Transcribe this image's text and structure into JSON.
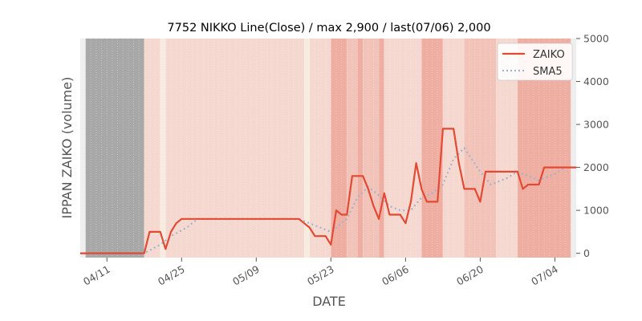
{
  "chart_data": {
    "type": "line",
    "title": "7752 NIKKO Line(Close) / max 2,900 / last(07/06) 2,000",
    "xlabel": "DATE",
    "ylabel": "IPPAN ZAIKO (volume)",
    "y_axis_side": "right",
    "ylim": [
      -100,
      5000
    ],
    "y_ticks": [
      0,
      1000,
      2000,
      3000,
      4000,
      5000
    ],
    "y_tick_labels": [
      "0",
      "1000",
      "2000",
      "3000",
      "4000",
      "5000"
    ],
    "x_range": [
      "2022-04-06",
      "2022-07-08"
    ],
    "x_ticks": [
      "2022-04-11",
      "2022-04-25",
      "2022-05-09",
      "2022-05-23",
      "2022-06-06",
      "2022-06-20",
      "2022-07-04"
    ],
    "x_tick_labels": [
      "04/11",
      "04/25",
      "05/09",
      "05/23",
      "06/06",
      "06/20",
      "07/04"
    ],
    "grid": false,
    "legend": "top-right",
    "colors": {
      "zaiko": "#e24a33",
      "sma5": "#a3b4cc",
      "missing_band": "#a8a8a8",
      "light_band": "#f5d9d0",
      "mid_band": "#f2c3b8",
      "dark_band": "#efaea2",
      "blank_band": "#eeeeee",
      "pale_band": "#f6ece0"
    },
    "background_bands": [
      {
        "from": "2022-04-06",
        "to": "2022-04-07",
        "level": "blank"
      },
      {
        "from": "2022-04-07",
        "to": "2022-04-18",
        "level": "missing"
      },
      {
        "from": "2022-04-18",
        "to": "2022-04-21",
        "level": "light"
      },
      {
        "from": "2022-04-21",
        "to": "2022-04-22",
        "level": "pale"
      },
      {
        "from": "2022-04-22",
        "to": "2022-05-18",
        "level": "light"
      },
      {
        "from": "2022-05-18",
        "to": "2022-05-19",
        "level": "pale"
      },
      {
        "from": "2022-05-19",
        "to": "2022-05-23",
        "level": "light"
      },
      {
        "from": "2022-05-23",
        "to": "2022-05-26",
        "level": "dark"
      },
      {
        "from": "2022-05-26",
        "to": "2022-05-28",
        "level": "mid"
      },
      {
        "from": "2022-05-28",
        "to": "2022-05-29",
        "level": "dark"
      },
      {
        "from": "2022-05-29",
        "to": "2022-06-01",
        "level": "mid"
      },
      {
        "from": "2022-06-01",
        "to": "2022-06-02",
        "level": "dark"
      },
      {
        "from": "2022-06-02",
        "to": "2022-06-09",
        "level": "light"
      },
      {
        "from": "2022-06-09",
        "to": "2022-06-13",
        "level": "dark"
      },
      {
        "from": "2022-06-13",
        "to": "2022-06-17",
        "level": "light"
      },
      {
        "from": "2022-06-17",
        "to": "2022-06-23",
        "level": "mid"
      },
      {
        "from": "2022-06-23",
        "to": "2022-06-27",
        "level": "light"
      },
      {
        "from": "2022-06-27",
        "to": "2022-07-07",
        "level": "dark"
      },
      {
        "from": "2022-07-07",
        "to": "2022-07-08",
        "level": "blank"
      }
    ],
    "series": [
      {
        "name": "ZAIKO",
        "style": "solid",
        "points": [
          [
            "2022-04-06",
            0
          ],
          [
            "2022-04-07",
            0
          ],
          [
            "2022-04-08",
            0
          ],
          [
            "2022-04-11",
            0
          ],
          [
            "2022-04-12",
            0
          ],
          [
            "2022-04-13",
            0
          ],
          [
            "2022-04-14",
            0
          ],
          [
            "2022-04-15",
            0
          ],
          [
            "2022-04-18",
            0
          ],
          [
            "2022-04-19",
            500
          ],
          [
            "2022-04-20",
            500
          ],
          [
            "2022-04-21",
            500
          ],
          [
            "2022-04-22",
            100
          ],
          [
            "2022-04-23",
            500
          ],
          [
            "2022-04-24",
            700
          ],
          [
            "2022-04-25",
            800
          ],
          [
            "2022-04-26",
            800
          ],
          [
            "2022-04-27",
            800
          ],
          [
            "2022-05-02",
            800
          ],
          [
            "2022-05-09",
            800
          ],
          [
            "2022-05-16",
            800
          ],
          [
            "2022-05-17",
            800
          ],
          [
            "2022-05-18",
            700
          ],
          [
            "2022-05-19",
            600
          ],
          [
            "2022-05-20",
            400
          ],
          [
            "2022-05-21",
            400
          ],
          [
            "2022-05-22",
            400
          ],
          [
            "2022-05-23",
            200
          ],
          [
            "2022-05-24",
            1000
          ],
          [
            "2022-05-25",
            900
          ],
          [
            "2022-05-26",
            900
          ],
          [
            "2022-05-27",
            1800
          ],
          [
            "2022-05-28",
            1800
          ],
          [
            "2022-05-29",
            1800
          ],
          [
            "2022-05-30",
            1500
          ],
          [
            "2022-05-31",
            1100
          ],
          [
            "2022-06-01",
            800
          ],
          [
            "2022-06-02",
            1400
          ],
          [
            "2022-06-03",
            900
          ],
          [
            "2022-06-04",
            900
          ],
          [
            "2022-06-05",
            900
          ],
          [
            "2022-06-06",
            700
          ],
          [
            "2022-06-07",
            1200
          ],
          [
            "2022-06-08",
            2100
          ],
          [
            "2022-06-09",
            1500
          ],
          [
            "2022-06-10",
            1200
          ],
          [
            "2022-06-11",
            1200
          ],
          [
            "2022-06-12",
            1200
          ],
          [
            "2022-06-13",
            2900
          ],
          [
            "2022-06-14",
            2900
          ],
          [
            "2022-06-15",
            2900
          ],
          [
            "2022-06-16",
            2100
          ],
          [
            "2022-06-17",
            1500
          ],
          [
            "2022-06-18",
            1500
          ],
          [
            "2022-06-19",
            1500
          ],
          [
            "2022-06-20",
            1200
          ],
          [
            "2022-06-21",
            1900
          ],
          [
            "2022-06-22",
            1900
          ],
          [
            "2022-06-27",
            1900
          ],
          [
            "2022-06-28",
            1500
          ],
          [
            "2022-06-29",
            1600
          ],
          [
            "2022-06-30",
            1600
          ],
          [
            "2022-07-01",
            1600
          ],
          [
            "2022-07-02",
            2000
          ],
          [
            "2022-07-06",
            2000
          ],
          [
            "2022-07-08",
            2000
          ]
        ]
      },
      {
        "name": "SMA5",
        "style": "dotted",
        "points": [
          [
            "2022-04-06",
            0
          ],
          [
            "2022-04-18",
            0
          ],
          [
            "2022-04-21",
            200
          ],
          [
            "2022-04-23",
            400
          ],
          [
            "2022-04-26",
            600
          ],
          [
            "2022-04-28",
            800
          ],
          [
            "2022-05-17",
            800
          ],
          [
            "2022-05-19",
            700
          ],
          [
            "2022-05-21",
            600
          ],
          [
            "2022-05-23",
            500
          ],
          [
            "2022-05-25",
            700
          ],
          [
            "2022-05-26",
            800
          ],
          [
            "2022-05-28",
            1300
          ],
          [
            "2022-05-30",
            1550
          ],
          [
            "2022-06-01",
            1350
          ],
          [
            "2022-06-03",
            1100
          ],
          [
            "2022-06-05",
            1000
          ],
          [
            "2022-06-07",
            1000
          ],
          [
            "2022-06-09",
            1300
          ],
          [
            "2022-06-11",
            1400
          ],
          [
            "2022-06-13",
            1600
          ],
          [
            "2022-06-15",
            2200
          ],
          [
            "2022-06-17",
            2450
          ],
          [
            "2022-06-20",
            1900
          ],
          [
            "2022-06-22",
            1600
          ],
          [
            "2022-06-25",
            1750
          ],
          [
            "2022-06-27",
            1900
          ],
          [
            "2022-06-29",
            1800
          ],
          [
            "2022-07-01",
            1700
          ],
          [
            "2022-07-04",
            1850
          ],
          [
            "2022-07-06",
            2000
          ],
          [
            "2022-07-08",
            2000
          ]
        ]
      }
    ]
  }
}
